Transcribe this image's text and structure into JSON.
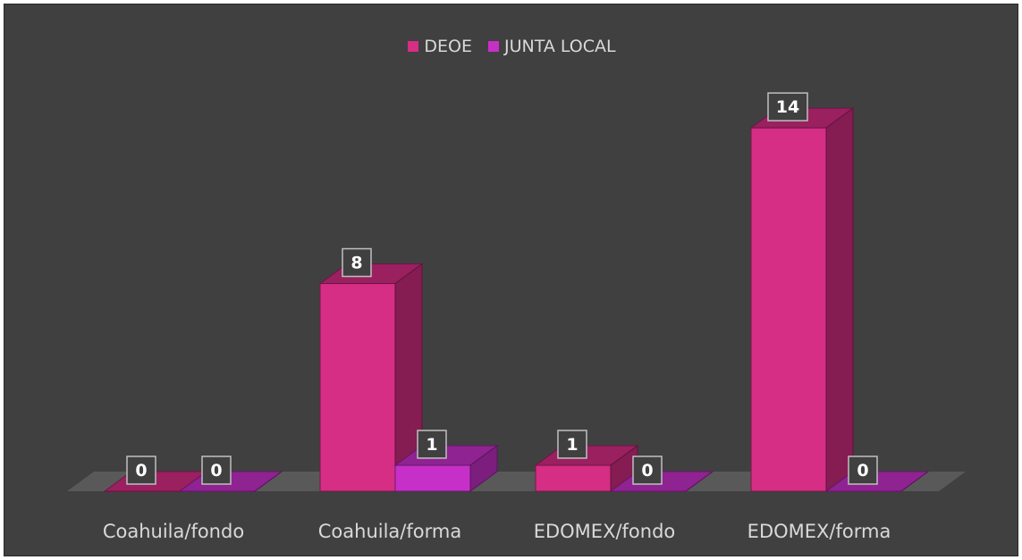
{
  "chart_data": {
    "type": "bar",
    "categories": [
      "Coahuila/fondo",
      "Coahuila/forma",
      "EDOMEX/fondo",
      "EDOMEX/forma"
    ],
    "series": [
      {
        "name": "DEOE",
        "values": [
          0,
          8,
          1,
          14
        ],
        "color": "#d62d85"
      },
      {
        "name": "JUNTA LOCAL",
        "values": [
          0,
          1,
          0,
          0
        ],
        "color": "#c630c9"
      }
    ],
    "ylim": [
      0,
      16
    ],
    "grid": false,
    "legend": "top-center",
    "style": "3d-column",
    "background": "#404040"
  }
}
